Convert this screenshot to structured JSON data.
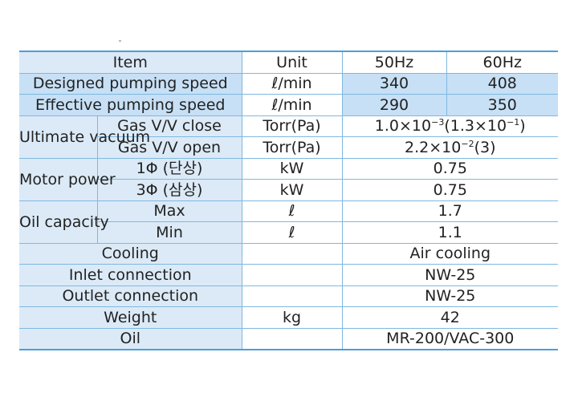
{
  "header": {
    "item": "Item",
    "unit": "Unit",
    "hz50": "50Hz",
    "hz60": "60Hz"
  },
  "rows": {
    "designed": {
      "label": "Designed pumping speed",
      "unit": "ℓ/min",
      "v50": "340",
      "v60": "408"
    },
    "effective": {
      "label": "Effective pumping speed",
      "unit": "ℓ/min",
      "v50": "290",
      "v60": "350"
    },
    "ultimate": {
      "group": "Ultimate vacuum",
      "close": {
        "label": "Gas V/V close",
        "unit": "Torr(Pa)",
        "value_base": "1.0×10",
        "value_exp": "−3",
        "value_rest": "(1.3×10",
        "value_exp2": "−1",
        "value_end": ")"
      },
      "open": {
        "label": "Gas V/V open",
        "unit": "Torr(Pa)",
        "value_base": "2.2×10",
        "value_exp": "−2",
        "value_rest": "(3)"
      }
    },
    "motor": {
      "group": "Motor power",
      "single": {
        "label": "1Φ (단상)",
        "unit": "kW",
        "value": "0.75"
      },
      "three": {
        "label": "3Φ (삼상)",
        "unit": "kW",
        "value": "0.75"
      }
    },
    "oil_capacity": {
      "group": "Oil capacity",
      "max": {
        "label": "Max",
        "unit": "ℓ",
        "value": "1.7"
      },
      "min": {
        "label": "Min",
        "unit": "ℓ",
        "value": "1.1"
      }
    },
    "cooling": {
      "label": "Cooling",
      "unit": "",
      "value": "Air cooling"
    },
    "inlet": {
      "label": "Inlet connection",
      "unit": "",
      "value": "NW-25"
    },
    "outlet": {
      "label": "Outlet connection",
      "unit": "",
      "value": "NW-25"
    },
    "weight": {
      "label": "Weight",
      "unit": "kg",
      "value": "42"
    },
    "oil": {
      "label": "Oil",
      "unit": "",
      "value": "MR-200/VAC-300"
    }
  },
  "colors": {
    "border_accent": "#4a9fd8",
    "row_shade": "#dceaf7",
    "row_highlight": "#c7e0f5"
  }
}
